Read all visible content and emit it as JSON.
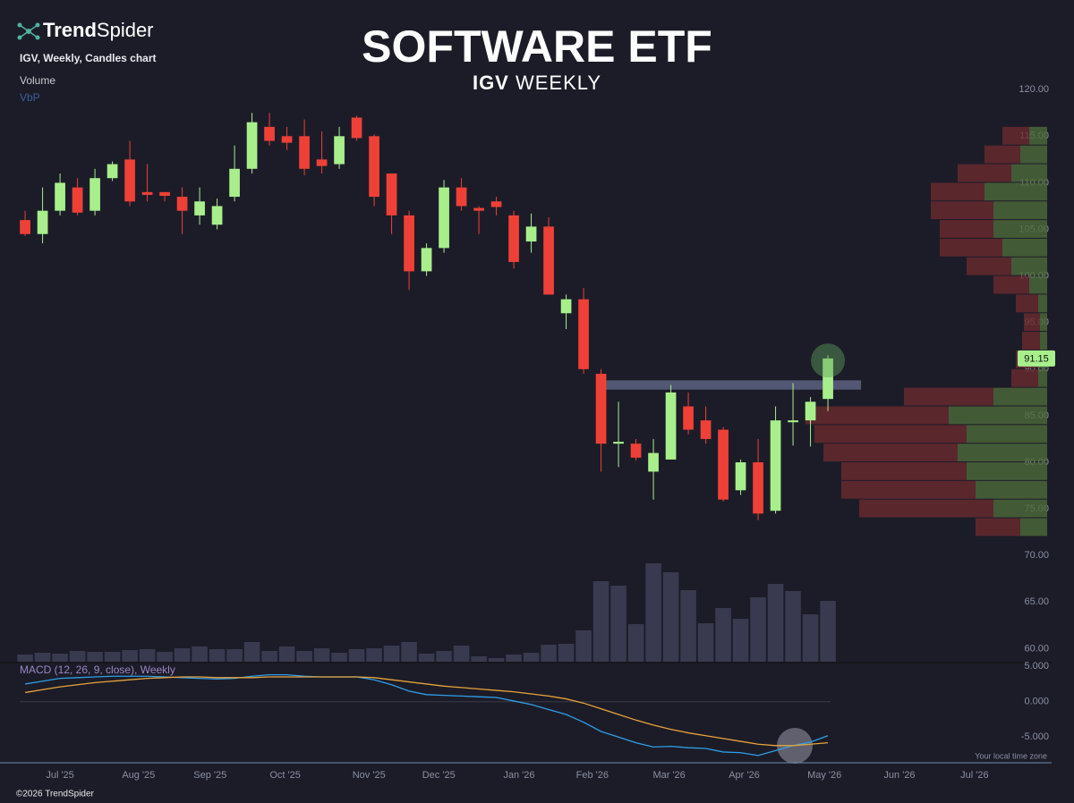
{
  "chart_data": {
    "type": "candlestick",
    "brand": [
      "Trend",
      "Spider"
    ],
    "chart_label": "IGV, Weekly, Candles chart",
    "volume_label": "Volume",
    "vbp_label": "VbP",
    "title": "SOFTWARE ETF",
    "subtitle": [
      "IGV",
      "WEEKLY"
    ],
    "macd_label": "MACD (12, 26, 9, close), Weekly",
    "timezone_note": "Your local time zone",
    "copyright": "©2026 TrendSpider",
    "up_color": "#a8ef8c",
    "down_color": "#ef4038",
    "volume_color": "#393a50",
    "candles": {
      "open": [
        106,
        104.5,
        107,
        109.5,
        107,
        110.5,
        112.5,
        109,
        109,
        108.5,
        106.5,
        105.5,
        108.5,
        111.5,
        116,
        115,
        115,
        112.5,
        112,
        117,
        115,
        111,
        106.5,
        100.5,
        103,
        109.5,
        107.3,
        108,
        106.5,
        103.7,
        105.3,
        96,
        97.5,
        89.5,
        82,
        82,
        79,
        80.3,
        86,
        84.5,
        83.5,
        77,
        80,
        74.8,
        84.3,
        84.5,
        86.8
      ],
      "high": [
        107,
        109.5,
        111,
        110.5,
        111.5,
        112.3,
        114.5,
        112,
        109,
        109.5,
        109.5,
        108.3,
        114,
        117.5,
        117.5,
        116,
        116.8,
        115.5,
        116,
        117.2,
        115.2,
        111,
        107,
        103.5,
        110.3,
        110.5,
        107.5,
        108.5,
        107,
        106.7,
        106.3,
        98,
        98.7,
        90,
        86.5,
        82.5,
        82.5,
        88.3,
        87.5,
        86,
        83.8,
        80.3,
        82.5,
        86,
        88.5,
        87,
        91.5
      ],
      "low": [
        104.3,
        103.5,
        106.5,
        106.5,
        106.5,
        110.2,
        107.5,
        108,
        108,
        104.5,
        105.5,
        105,
        108,
        111,
        114,
        113.5,
        110.8,
        111,
        111.5,
        114.5,
        107.5,
        104.5,
        98.5,
        100,
        102.5,
        107,
        104.5,
        106.5,
        100.8,
        102.5,
        98,
        94.3,
        89.5,
        79,
        79.5,
        80.2,
        76,
        80.3,
        83,
        82,
        75.8,
        76.5,
        73.8,
        74.5,
        81.8,
        81.7,
        85.5
      ],
      "close": [
        104.5,
        107,
        110,
        106.8,
        110.5,
        112,
        108,
        108.7,
        108.6,
        107,
        108,
        107.5,
        111.5,
        116.5,
        114.5,
        114.3,
        111.5,
        111.8,
        115,
        114.8,
        108.5,
        106.5,
        100.5,
        103,
        109.5,
        107.5,
        107,
        107.4,
        101.5,
        105.3,
        98,
        97.5,
        90,
        82,
        82.2,
        80.5,
        81,
        87.5,
        83.5,
        82.5,
        76,
        80,
        74.5,
        84.5,
        84.5,
        86.5,
        91.15
      ]
    },
    "volume": [
      8,
      10,
      9,
      12,
      11,
      11,
      13,
      14,
      11,
      15,
      17,
      14,
      14,
      22,
      12,
      17,
      12,
      15,
      10,
      14,
      15,
      18,
      22,
      9,
      12,
      18,
      6,
      4,
      8,
      10,
      19,
      20,
      35,
      90,
      85,
      42,
      110,
      100,
      80,
      43,
      60,
      48,
      72,
      87,
      79,
      53,
      68
    ],
    "volume_ylim": [
      0,
      115
    ],
    "last_price": 91.15,
    "resistance": {
      "price": [
        87.8,
        88.8
      ],
      "x": [
        33.2,
        47.9
      ]
    },
    "xlim": [
      -1.44,
      60.1
    ],
    "xticks": [
      {
        "value": 2,
        "label": "Jul '25"
      },
      {
        "value": 6.5,
        "label": "Aug '25"
      },
      {
        "value": 10.6,
        "label": "Sep '25"
      },
      {
        "value": 14.9,
        "label": "Oct '25"
      },
      {
        "value": 19.7,
        "label": "Nov '25"
      },
      {
        "value": 23.7,
        "label": "Dec '25"
      },
      {
        "value": 28.3,
        "label": "Jan '26"
      },
      {
        "value": 32.5,
        "label": "Feb '26"
      },
      {
        "value": 36.9,
        "label": "Mar '26"
      },
      {
        "value": 41.2,
        "label": "Apr '26"
      },
      {
        "value": 45.8,
        "label": "May '26"
      },
      {
        "value": 50.1,
        "label": "Jun '26"
      },
      {
        "value": 54.4,
        "label": "Jul '26"
      }
    ],
    "ylim": [
      58.6,
      120.5
    ],
    "yticks": [
      {
        "value": 60,
        "label": "60.00"
      },
      {
        "value": 65,
        "label": "65.00"
      },
      {
        "value": 70,
        "label": "70.00"
      },
      {
        "value": 75,
        "label": "75.00"
      },
      {
        "value": 80,
        "label": "80.00"
      },
      {
        "value": 85,
        "label": "85.00"
      },
      {
        "value": 90,
        "label": "90.00"
      },
      {
        "value": 95,
        "label": "95.00"
      },
      {
        "value": 100,
        "label": "100.00"
      },
      {
        "value": 105,
        "label": "105.00"
      },
      {
        "value": 110,
        "label": "110.00"
      },
      {
        "value": 115,
        "label": "115.00"
      },
      {
        "value": 120,
        "label": "120.00"
      }
    ],
    "vbp": {
      "step": 2,
      "levels": [
        73,
        75,
        77,
        79,
        81,
        83,
        85,
        87,
        89,
        91,
        93,
        95,
        97,
        99,
        101,
        103,
        105,
        107,
        109,
        111,
        113,
        115
      ],
      "up": [
        30,
        60,
        80,
        90,
        100,
        90,
        110,
        60,
        10,
        10,
        8,
        8,
        10,
        20,
        40,
        50,
        60,
        60,
        70,
        40,
        30,
        20
      ],
      "down": [
        50,
        150,
        150,
        140,
        150,
        170,
        160,
        100,
        30,
        25,
        20,
        18,
        25,
        40,
        50,
        70,
        60,
        70,
        60,
        60,
        40,
        30
      ],
      "up_color": "#4d6a3a",
      "down_color": "#6a2a2e"
    },
    "macd": {
      "y2lim": [
        -8.5,
        5.4
      ],
      "y2ticks": [
        {
          "value": 5,
          "label": "5.000"
        },
        {
          "value": 0,
          "label": "0.000"
        },
        {
          "value": -5,
          "label": "-5.000"
        }
      ],
      "series": [
        {
          "color": "#2f9ee8",
          "axis": "y2",
          "values": [
            2.5,
            2.9,
            3.3,
            3.4,
            3.5,
            3.6,
            3.6,
            3.6,
            3.5,
            3.4,
            3.3,
            3.2,
            3.3,
            3.6,
            3.8,
            3.8,
            3.6,
            3.5,
            3.5,
            3.5,
            3.1,
            2.4,
            1.5,
            1.0,
            0.9,
            0.8,
            0.7,
            0.6,
            0.1,
            -0.4,
            -1.1,
            -1.8,
            -2.9,
            -4.2,
            -5.0,
            -5.8,
            -6.4,
            -6.3,
            -6.5,
            -6.6,
            -7.1,
            -7.2,
            -7.6,
            -6.9,
            -6.2,
            -5.7,
            -4.8
          ]
        },
        {
          "color": "#e8a33a",
          "axis": "y2",
          "values": [
            1.3,
            1.7,
            2.1,
            2.4,
            2.7,
            2.9,
            3.1,
            3.3,
            3.4,
            3.5,
            3.5,
            3.4,
            3.4,
            3.4,
            3.5,
            3.5,
            3.5,
            3.5,
            3.5,
            3.5,
            3.4,
            3.1,
            2.8,
            2.5,
            2.2,
            2.0,
            1.8,
            1.6,
            1.4,
            1.1,
            0.8,
            0.4,
            -0.2,
            -1.0,
            -1.8,
            -2.6,
            -3.3,
            -3.9,
            -4.4,
            -4.8,
            -5.2,
            -5.6,
            -6.0,
            -6.2,
            -6.2,
            -6.0,
            -5.8
          ]
        }
      ]
    }
  }
}
